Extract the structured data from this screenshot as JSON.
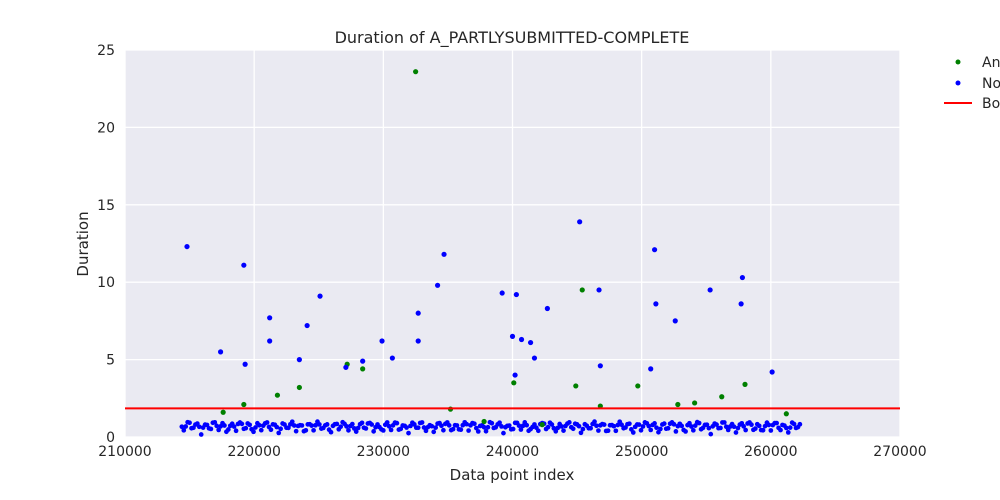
{
  "chart_data": {
    "type": "scatter",
    "title": "Duration of A_PARTLYSUBMITTED-COMPLETE",
    "xlabel": "Data point index",
    "ylabel": "Duration",
    "xlim": [
      210000,
      270000
    ],
    "ylim": [
      0,
      25
    ],
    "x_ticks": [
      "210000",
      "220000",
      "230000",
      "240000",
      "250000",
      "260000",
      "270000"
    ],
    "y_ticks": [
      "0",
      "5",
      "10",
      "15",
      "20",
      "25"
    ],
    "grid": true,
    "background": "#eaeaf2",
    "legend_placement": "outside-right",
    "legend_entries_visible": [
      "An",
      "No",
      "Bo"
    ],
    "boundary": {
      "y": 1.85,
      "color": "#ff0000"
    },
    "series": [
      {
        "name": "An",
        "color": "#008000",
        "x": [
          232500,
          245400,
          227200,
          228400,
          240100,
          221800,
          246800,
          254100,
          244900,
          223500,
          217600,
          219200,
          235200,
          252800,
          258000,
          261200,
          256200,
          249700,
          237800,
          242300
        ],
        "y": [
          23.6,
          9.5,
          4.7,
          4.4,
          3.5,
          2.7,
          2.0,
          2.2,
          3.3,
          3.2,
          1.6,
          2.1,
          1.8,
          2.1,
          3.4,
          1.5,
          2.6,
          3.3,
          1.0,
          0.8
        ]
      },
      {
        "name": "No",
        "color": "#0000ff",
        "x": [
          245200,
          214800,
          251000,
          219200,
          234700,
          246700,
          257800,
          225100,
          239200,
          240300,
          234200,
          255300,
          257700,
          251100,
          242700,
          221200,
          232700,
          252600,
          224100,
          240000,
          240700,
          221200,
          241400,
          229900,
          232700,
          217400,
          241700,
          223500,
          230700,
          250700,
          246800,
          260100,
          228400,
          219300,
          227100,
          240200
        ],
        "y": [
          13.9,
          12.3,
          12.1,
          11.1,
          11.8,
          9.5,
          10.3,
          9.1,
          9.3,
          9.2,
          9.8,
          9.5,
          8.6,
          8.6,
          8.3,
          7.7,
          8.0,
          7.5,
          7.2,
          6.5,
          6.3,
          6.2,
          6.1,
          6.2,
          6.2,
          5.5,
          5.1,
          5.0,
          5.1,
          4.4,
          4.6,
          4.2,
          4.9,
          4.7,
          4.5,
          4.0
        ]
      }
    ]
  }
}
